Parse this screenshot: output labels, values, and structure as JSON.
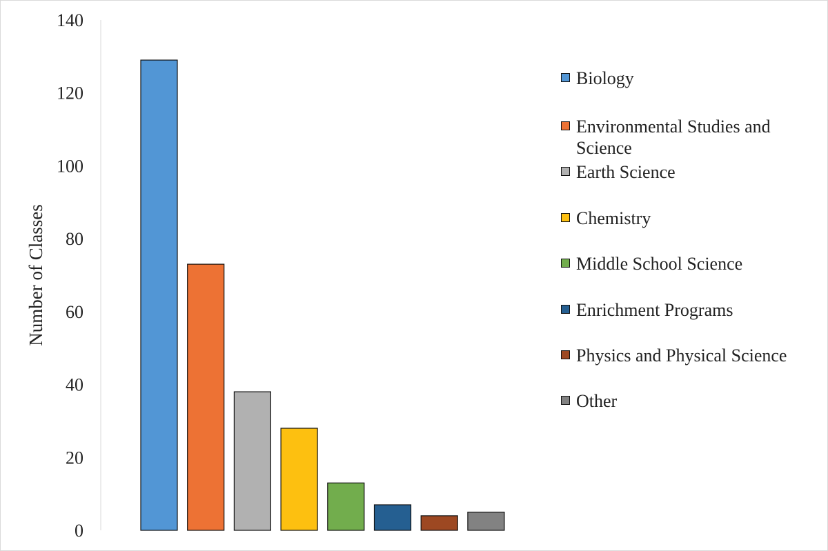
{
  "chart_data": {
    "type": "bar",
    "title": "",
    "xlabel": "",
    "ylabel": "Number of Classes",
    "ylim": [
      0,
      140
    ],
    "yticks": [
      0,
      20,
      40,
      60,
      80,
      100,
      120,
      140
    ],
    "grid": false,
    "legend_position": "right",
    "categories": [
      "Biology",
      "Environmental Studies and Science",
      "Earth Science",
      "Chemistry",
      "Middle School Science",
      "Enrichment Programs",
      "Physics and Physical Science",
      "Other"
    ],
    "values": [
      129,
      73,
      38,
      28,
      13,
      7,
      4,
      5
    ],
    "colors": [
      "#5296d5",
      "#ed7234",
      "#b1b1b1",
      "#fdc010",
      "#72ad4d",
      "#255f91",
      "#9d4822",
      "#828282"
    ]
  }
}
